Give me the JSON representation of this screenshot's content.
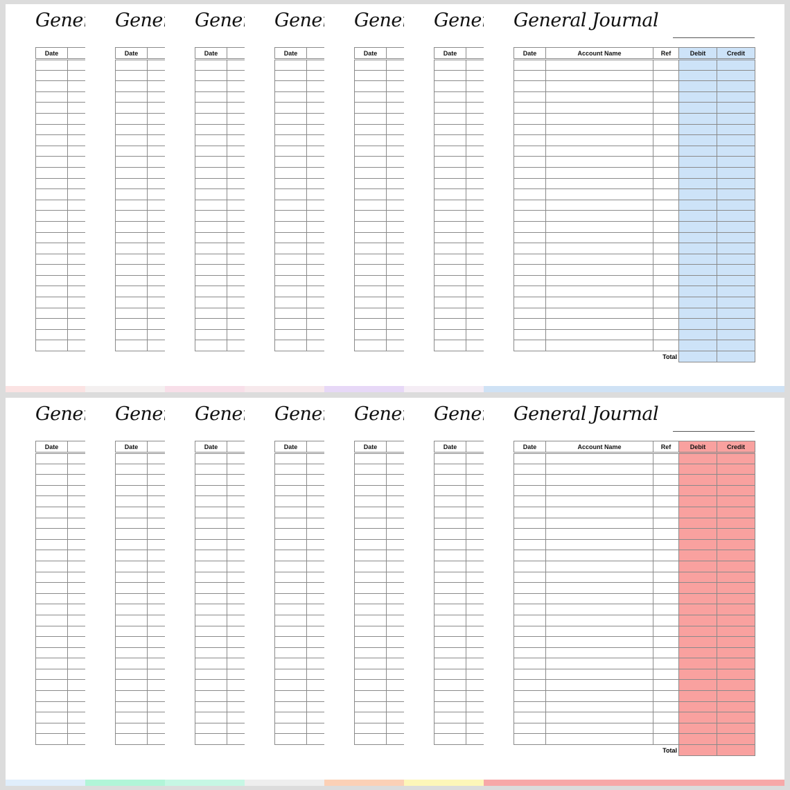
{
  "panels": [
    {
      "id": "blue",
      "accent": "#cde3f8",
      "strip_colors": [
        "#fbe3e3",
        "#f4f0f0",
        "#f8dfe9",
        "#f7e9ec",
        "#e7d8f7",
        "#f5edf5",
        "#cfe2f5"
      ],
      "small_titles": [
        "Genera",
        "Genera",
        "Genera",
        "Genera",
        "Genera",
        "Genera"
      ],
      "small_headers": [
        "Date",
        "Date",
        "Date",
        "Date",
        "Date",
        "Date"
      ],
      "main": {
        "title": "General Journal",
        "headers": {
          "date": "Date",
          "account": "Account Name",
          "ref": "Ref",
          "debit": "Debit",
          "credit": "Credit"
        },
        "total_label": "Total"
      }
    },
    {
      "id": "red",
      "accent": "#f9a19f",
      "strip_colors": [
        "#e0eefb",
        "#b1f5d8",
        "#c6f7e4",
        "#eeeeee",
        "#fbd0b6",
        "#fdf6b9",
        "#f7a8a8"
      ],
      "small_titles": [
        "Genera",
        "Genera",
        "Genera",
        "Genera",
        "Genera",
        "Genera"
      ],
      "small_headers": [
        "Date",
        "Date",
        "Date",
        "Date",
        "Date",
        "Date"
      ],
      "main": {
        "title": "General Journal",
        "headers": {
          "date": "Date",
          "account": "Account Name",
          "ref": "Ref",
          "debit": "Debit",
          "credit": "Credit"
        },
        "total_label": "Total"
      }
    }
  ]
}
